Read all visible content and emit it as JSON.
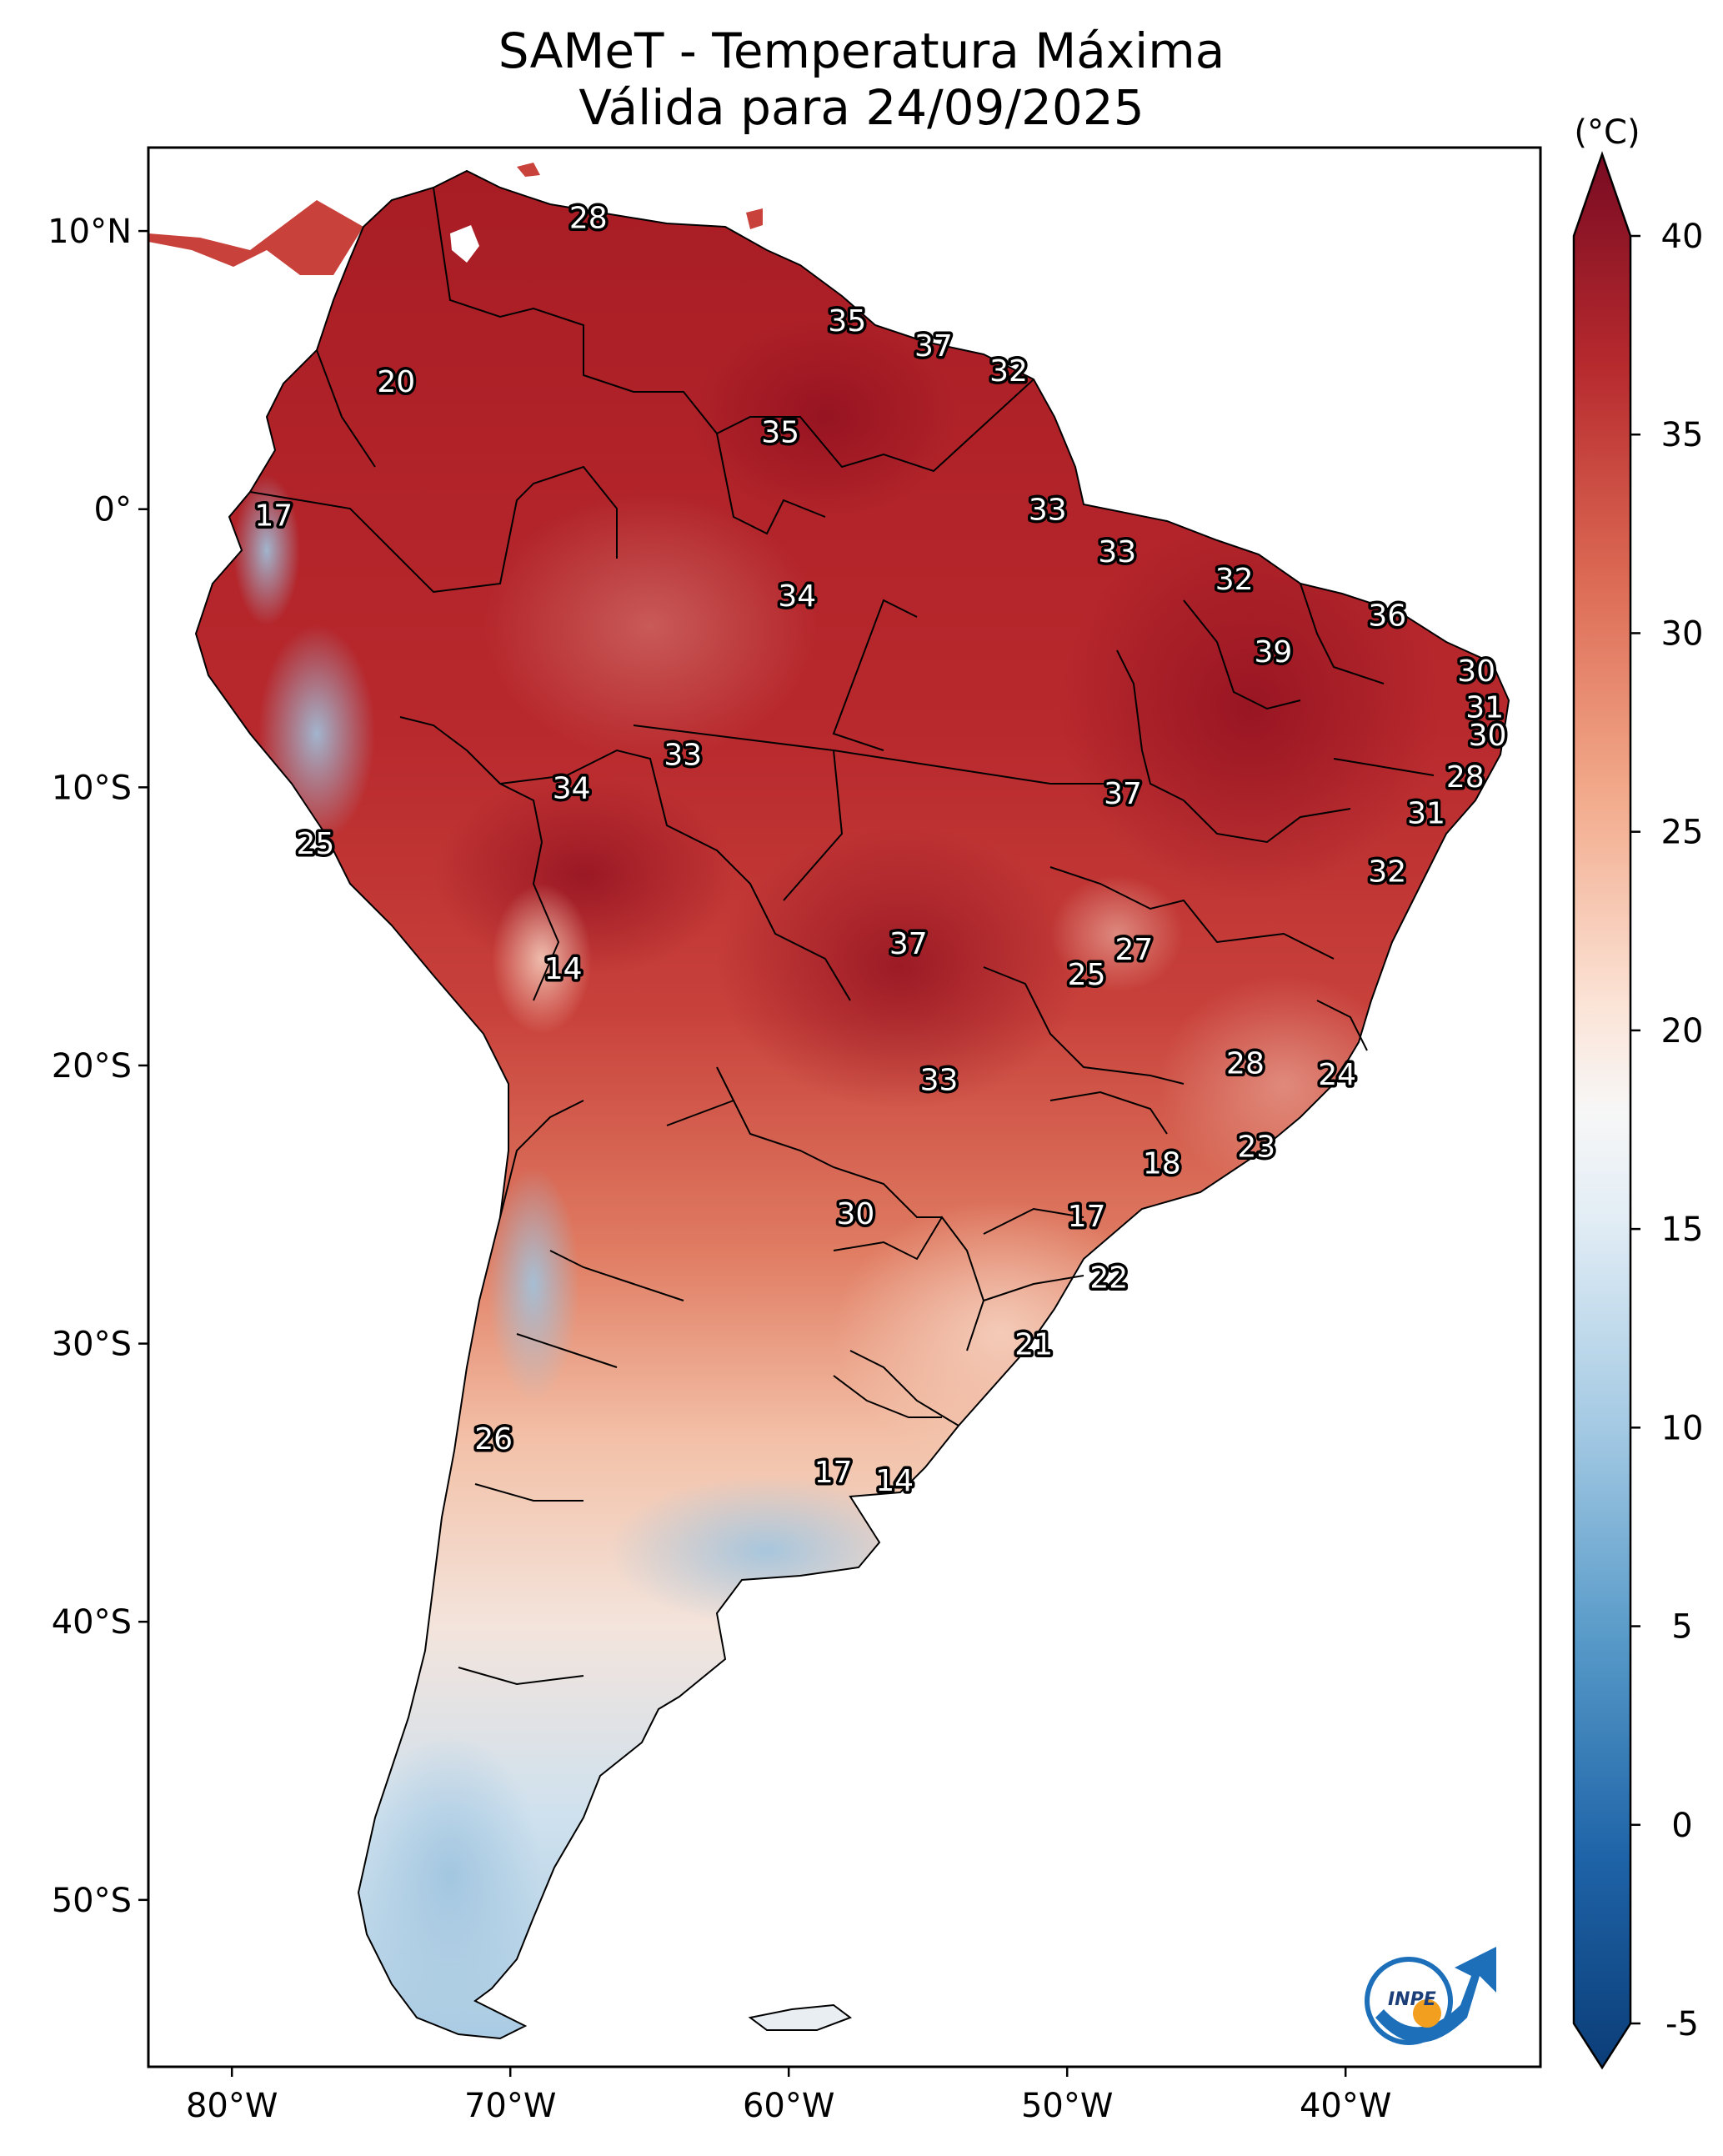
{
  "title_line1": "SAMeT - Temperatura Máxima",
  "title_line2": "Válida para 24/09/2025",
  "map": {
    "lat_ticks": [
      {
        "label": "10°N",
        "lat": 10
      },
      {
        "label": "0°",
        "lat": 0
      },
      {
        "label": "10°S",
        "lat": -10
      },
      {
        "label": "20°S",
        "lat": -20
      },
      {
        "label": "30°S",
        "lat": -30
      },
      {
        "label": "40°S",
        "lat": -40
      },
      {
        "label": "50°S",
        "lat": -50
      }
    ],
    "lon_ticks": [
      {
        "label": "80°W",
        "lon": -80
      },
      {
        "label": "70°W",
        "lon": -70
      },
      {
        "label": "60°W",
        "lon": -60
      },
      {
        "label": "50°W",
        "lon": -50
      },
      {
        "label": "40°W",
        "lon": -40
      }
    ],
    "extent": {
      "lon_min": -83,
      "lon_max": -33,
      "lat_min": -56,
      "lat_max": 13
    }
  },
  "cities": [
    {
      "value": "28",
      "lon": -67.2,
      "lat": 10.5
    },
    {
      "value": "35",
      "lon": -57.9,
      "lat": 6.8
    },
    {
      "value": "37",
      "lon": -54.8,
      "lat": 5.9
    },
    {
      "value": "32",
      "lon": -52.1,
      "lat": 5.0
    },
    {
      "value": "20",
      "lon": -74.1,
      "lat": 4.6
    },
    {
      "value": "35",
      "lon": -60.3,
      "lat": 2.8
    },
    {
      "value": "17",
      "lon": -78.5,
      "lat": -0.2
    },
    {
      "value": "33",
      "lon": -50.7,
      "lat": 0.0
    },
    {
      "value": "33",
      "lon": -48.2,
      "lat": -1.5
    },
    {
      "value": "32",
      "lon": -44.0,
      "lat": -2.5
    },
    {
      "value": "34",
      "lon": -59.7,
      "lat": -3.1
    },
    {
      "value": "36",
      "lon": -38.5,
      "lat": -3.8
    },
    {
      "value": "39",
      "lon": -42.6,
      "lat": -5.1
    },
    {
      "value": "30",
      "lon": -35.3,
      "lat": -5.8
    },
    {
      "value": "31",
      "lon": -35.0,
      "lat": -7.1
    },
    {
      "value": "30",
      "lon": -34.9,
      "lat": -8.1
    },
    {
      "value": "33",
      "lon": -63.8,
      "lat": -8.8
    },
    {
      "value": "28",
      "lon": -35.7,
      "lat": -9.6
    },
    {
      "value": "34",
      "lon": -67.8,
      "lat": -10.0
    },
    {
      "value": "37",
      "lon": -48.0,
      "lat": -10.2
    },
    {
      "value": "31",
      "lon": -37.1,
      "lat": -10.9
    },
    {
      "value": "25",
      "lon": -77.0,
      "lat": -12.0
    },
    {
      "value": "32",
      "lon": -38.5,
      "lat": -13.0
    },
    {
      "value": "27",
      "lon": -47.6,
      "lat": -15.8
    },
    {
      "value": "37",
      "lon": -55.7,
      "lat": -15.6
    },
    {
      "value": "14",
      "lon": -68.1,
      "lat": -16.5
    },
    {
      "value": "25",
      "lon": -49.3,
      "lat": -16.7
    },
    {
      "value": "28",
      "lon": -43.6,
      "lat": -19.9
    },
    {
      "value": "24",
      "lon": -40.3,
      "lat": -20.3
    },
    {
      "value": "33",
      "lon": -54.6,
      "lat": -20.5
    },
    {
      "value": "23",
      "lon": -43.2,
      "lat": -22.9
    },
    {
      "value": "18",
      "lon": -46.6,
      "lat": -23.5
    },
    {
      "value": "17",
      "lon": -49.3,
      "lat": -25.4
    },
    {
      "value": "30",
      "lon": -57.6,
      "lat": -25.3
    },
    {
      "value": "22",
      "lon": -48.5,
      "lat": -27.6
    },
    {
      "value": "21",
      "lon": -51.2,
      "lat": -30.0
    },
    {
      "value": "26",
      "lon": -70.6,
      "lat": -33.4
    },
    {
      "value": "17",
      "lon": -58.4,
      "lat": -34.6
    },
    {
      "value": "14",
      "lon": -56.2,
      "lat": -34.9
    }
  ],
  "colorbar": {
    "unit": "(°C)",
    "ticks": [
      "-5",
      "0",
      "5",
      "10",
      "15",
      "20",
      "25",
      "30",
      "35",
      "40"
    ],
    "vmin": -5,
    "vmax": 40
  },
  "logo": {
    "text": "INPE"
  }
}
